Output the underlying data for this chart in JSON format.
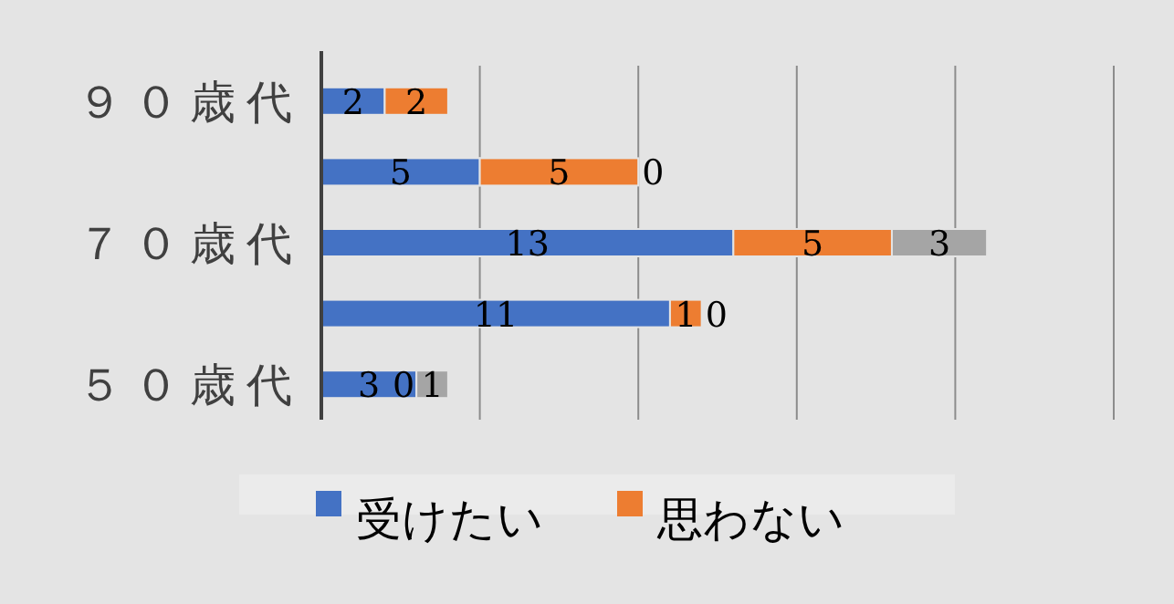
{
  "chart_data": {
    "type": "bar",
    "orientation": "horizontal",
    "stacked": true,
    "categories": [
      "９０歳代",
      null,
      "７０歳代",
      null,
      "５０歳代"
    ],
    "series": [
      {
        "name": "受けたい",
        "color": "#4472c4",
        "values": [
          2,
          5,
          13,
          11,
          3
        ]
      },
      {
        "name": "思わない",
        "color": "#ed7d31",
        "values": [
          2,
          5,
          5,
          1,
          0
        ]
      },
      {
        "color": "#a5a5a5",
        "values": [
          null,
          0,
          3,
          0,
          1
        ]
      }
    ],
    "xlim": [
      0,
      25
    ],
    "xticks": [
      {
        "value": 0,
        "label": null
      },
      {
        "value": 5,
        "label": null
      },
      {
        "value": 10,
        "label": null
      },
      {
        "value": 15,
        "label": null
      },
      {
        "value": 20,
        "label": null
      },
      {
        "value": 25,
        "label": null
      }
    ],
    "grid": "x",
    "tick_labels": "y",
    "data_labels": true,
    "legend": "bottom"
  }
}
